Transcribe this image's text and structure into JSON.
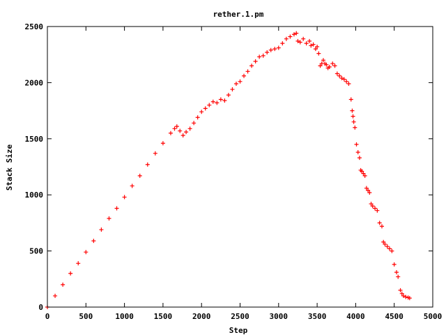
{
  "chart_data": {
    "type": "scatter",
    "title": "rether.1.pm",
    "xlabel": "Step",
    "ylabel": "Stack Size",
    "xlim": [
      0,
      5000
    ],
    "ylim": [
      0,
      2500
    ],
    "xticks": [
      0,
      500,
      1000,
      1500,
      2000,
      2500,
      3000,
      3500,
      4000,
      4500,
      5000
    ],
    "yticks": [
      0,
      500,
      1000,
      1500,
      2000,
      2500
    ],
    "grid": false,
    "legend": "none",
    "marker": "plus",
    "color": "#ff0000",
    "series": [
      {
        "x": [
          0,
          100,
          200,
          300,
          400,
          500,
          600,
          700,
          800,
          900,
          1000,
          1100,
          1200,
          1300,
          1400,
          1500,
          1600,
          1650,
          1680,
          1720,
          1760,
          1800,
          1850,
          1900,
          1950,
          2000,
          2050,
          2100,
          2150,
          2200,
          2250,
          2300,
          2350,
          2400,
          2450,
          2500,
          2550,
          2600,
          2650,
          2700,
          2750,
          2800,
          2850,
          2900,
          2950,
          3000,
          3050,
          3100,
          3150,
          3200,
          3230,
          3250,
          3280,
          3320,
          3360,
          3400,
          3420,
          3450,
          3480,
          3500,
          3520,
          3540,
          3560,
          3580,
          3600,
          3620,
          3640,
          3660,
          3700,
          3730,
          3760,
          3790,
          3820,
          3850,
          3880,
          3910,
          3940,
          3955,
          3965,
          3975,
          3990,
          4010,
          4030,
          4050,
          4065,
          4080,
          4100,
          4120,
          4140,
          4160,
          4180,
          4200,
          4220,
          4250,
          4280,
          4310,
          4340,
          4360,
          4380,
          4410,
          4440,
          4470,
          4500,
          4530,
          4550,
          4580,
          4600,
          4620,
          4650,
          4680,
          4700
        ],
        "y": [
          0,
          100,
          200,
          300,
          390,
          490,
          590,
          690,
          790,
          880,
          980,
          1080,
          1170,
          1270,
          1370,
          1460,
          1550,
          1590,
          1610,
          1570,
          1530,
          1560,
          1590,
          1640,
          1690,
          1740,
          1770,
          1800,
          1830,
          1820,
          1850,
          1840,
          1890,
          1940,
          1990,
          2010,
          2060,
          2100,
          2150,
          2190,
          2230,
          2240,
          2270,
          2290,
          2300,
          2310,
          2350,
          2390,
          2410,
          2430,
          2440,
          2370,
          2360,
          2390,
          2350,
          2370,
          2330,
          2340,
          2300,
          2320,
          2260,
          2150,
          2170,
          2200,
          2170,
          2160,
          2130,
          2140,
          2170,
          2150,
          2080,
          2060,
          2040,
          2030,
          2010,
          1990,
          1850,
          1750,
          1700,
          1650,
          1600,
          1450,
          1380,
          1330,
          1220,
          1210,
          1190,
          1170,
          1060,
          1040,
          1020,
          920,
          900,
          880,
          860,
          750,
          720,
          580,
          560,
          540,
          520,
          500,
          380,
          310,
          270,
          150,
          120,
          100,
          90,
          85,
          80
        ]
      }
    ]
  }
}
